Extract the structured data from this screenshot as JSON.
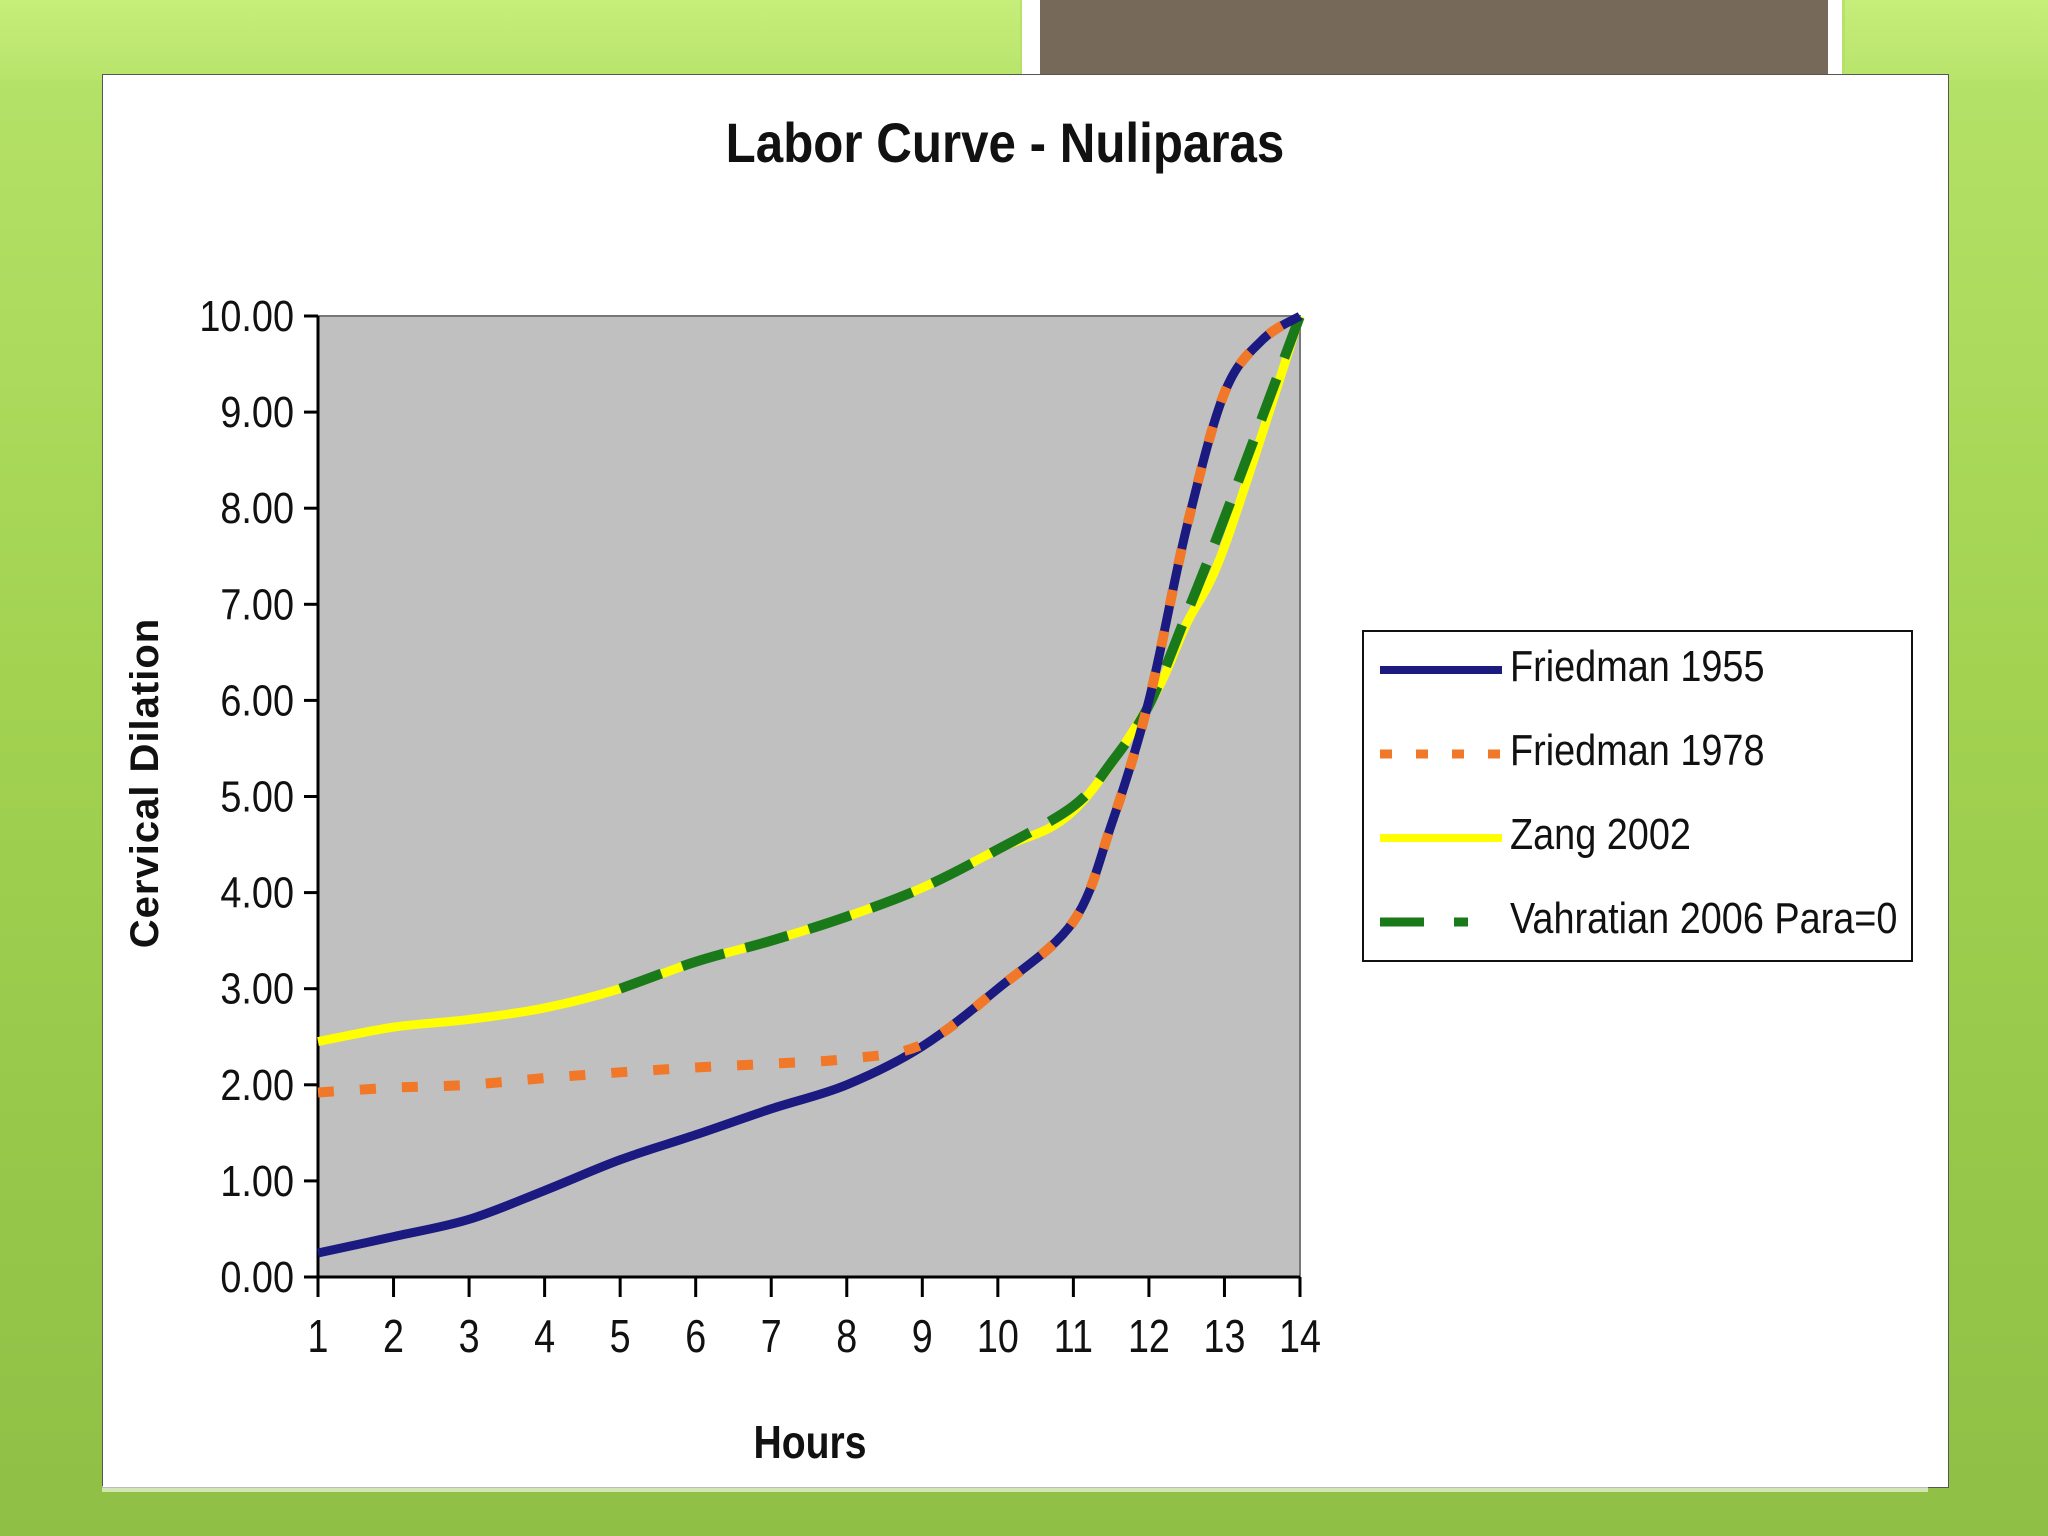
{
  "slide": {
    "colors": {
      "background_green": "#a2d250",
      "header_bar": "#77695a",
      "plot_area": "#c0c0c0"
    }
  },
  "chart_data": {
    "type": "line",
    "title": "Labor Curve - Nuliparas",
    "xlabel": "Hours",
    "ylabel": "Cervical Dilation",
    "x": [
      1,
      2,
      3,
      4,
      5,
      6,
      7,
      8,
      9,
      10,
      11,
      12,
      13,
      14
    ],
    "xticks": [
      "1",
      "2",
      "3",
      "4",
      "5",
      "6",
      "7",
      "8",
      "9",
      "10",
      "11",
      "12",
      "13",
      "14"
    ],
    "yticks": [
      "0.00",
      "1.00",
      "2.00",
      "3.00",
      "4.00",
      "5.00",
      "6.00",
      "7.00",
      "8.00",
      "9.00",
      "10.00"
    ],
    "ylim": [
      0,
      10
    ],
    "grid": false,
    "legend_position": "right",
    "series": [
      {
        "name": "Zang 2002",
        "color": "#ffff00",
        "style": "solid",
        "x": [
          1,
          2,
          3,
          4,
          5,
          6,
          7,
          8,
          9,
          10,
          11,
          12,
          12.5,
          13,
          14
        ],
        "values": [
          2.45,
          2.6,
          2.68,
          2.8,
          3.0,
          3.28,
          3.5,
          3.75,
          4.05,
          4.45,
          4.85,
          5.95,
          6.8,
          7.6,
          10.0
        ]
      },
      {
        "name": "Vahratian 2006 Para=0",
        "color": "#1a7a1a",
        "style": "dashed",
        "x": [
          5,
          6,
          7,
          8,
          9,
          10,
          11,
          11.5,
          12,
          12.5,
          13,
          14
        ],
        "values": [
          3.0,
          3.28,
          3.5,
          3.75,
          4.05,
          4.45,
          4.9,
          5.35,
          5.95,
          6.9,
          7.9,
          10.0
        ]
      },
      {
        "name": "Friedman 1955",
        "color": "#1a1a80",
        "style": "solid",
        "x": [
          1,
          2,
          3,
          4,
          5,
          6,
          7,
          8,
          9,
          10,
          11,
          11.5,
          12,
          12.5,
          13,
          13.5,
          14
        ],
        "values": [
          0.25,
          0.42,
          0.6,
          0.9,
          1.22,
          1.48,
          1.75,
          2.0,
          2.4,
          3.0,
          3.7,
          4.7,
          6.0,
          7.8,
          9.2,
          9.75,
          10.0
        ]
      },
      {
        "name": "Friedman 1978",
        "color": "#f07828",
        "style": "dotted",
        "x": [
          1,
          2,
          3,
          4,
          5,
          6,
          7,
          8,
          9,
          10,
          11,
          11.5,
          12,
          12.5,
          13,
          13.5,
          14
        ],
        "values": [
          1.92,
          1.97,
          2.0,
          2.07,
          2.13,
          2.18,
          2.22,
          2.27,
          2.42,
          3.0,
          3.7,
          4.7,
          6.0,
          7.8,
          9.2,
          9.75,
          10.0
        ]
      }
    ],
    "legend_order": [
      "Friedman 1955",
      "Friedman 1978",
      "Zang 2002",
      "Vahratian 2006 Para=0"
    ]
  }
}
